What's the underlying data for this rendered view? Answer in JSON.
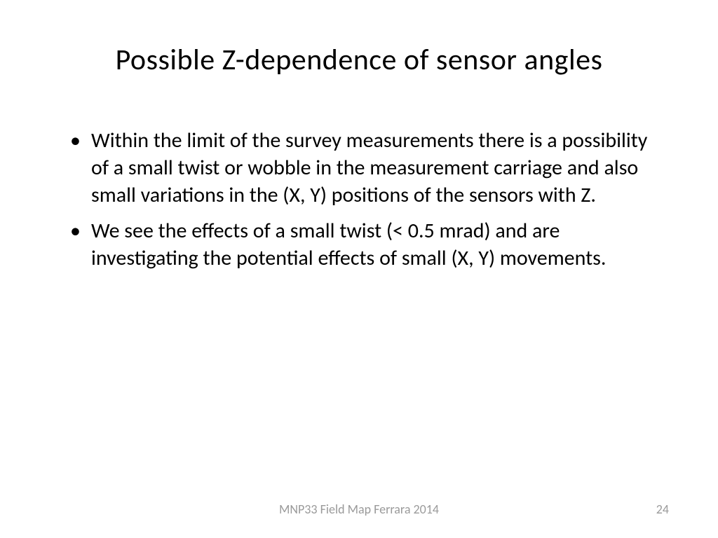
{
  "slide": {
    "title": "Possible Z-dependence of sensor angles",
    "bullets": [
      "Within the limit of the survey measurements there is a possibility of a small twist or wobble in the measurement carriage and also small variations in the (X, Y) positions of the sensors with Z.",
      "We see the effects of a small twist (< 0.5 mrad) and are investigating the potential effects of small (X, Y) movements."
    ],
    "footer_text": "MNP33 Field Map  Ferrara 2014",
    "page_number": "24"
  },
  "styles": {
    "background_color": "#ffffff",
    "title_color": "#000000",
    "title_fontsize": 42,
    "body_color": "#000000",
    "body_fontsize": 30,
    "footer_color": "#9a9a9a",
    "footer_fontsize": 18
  }
}
